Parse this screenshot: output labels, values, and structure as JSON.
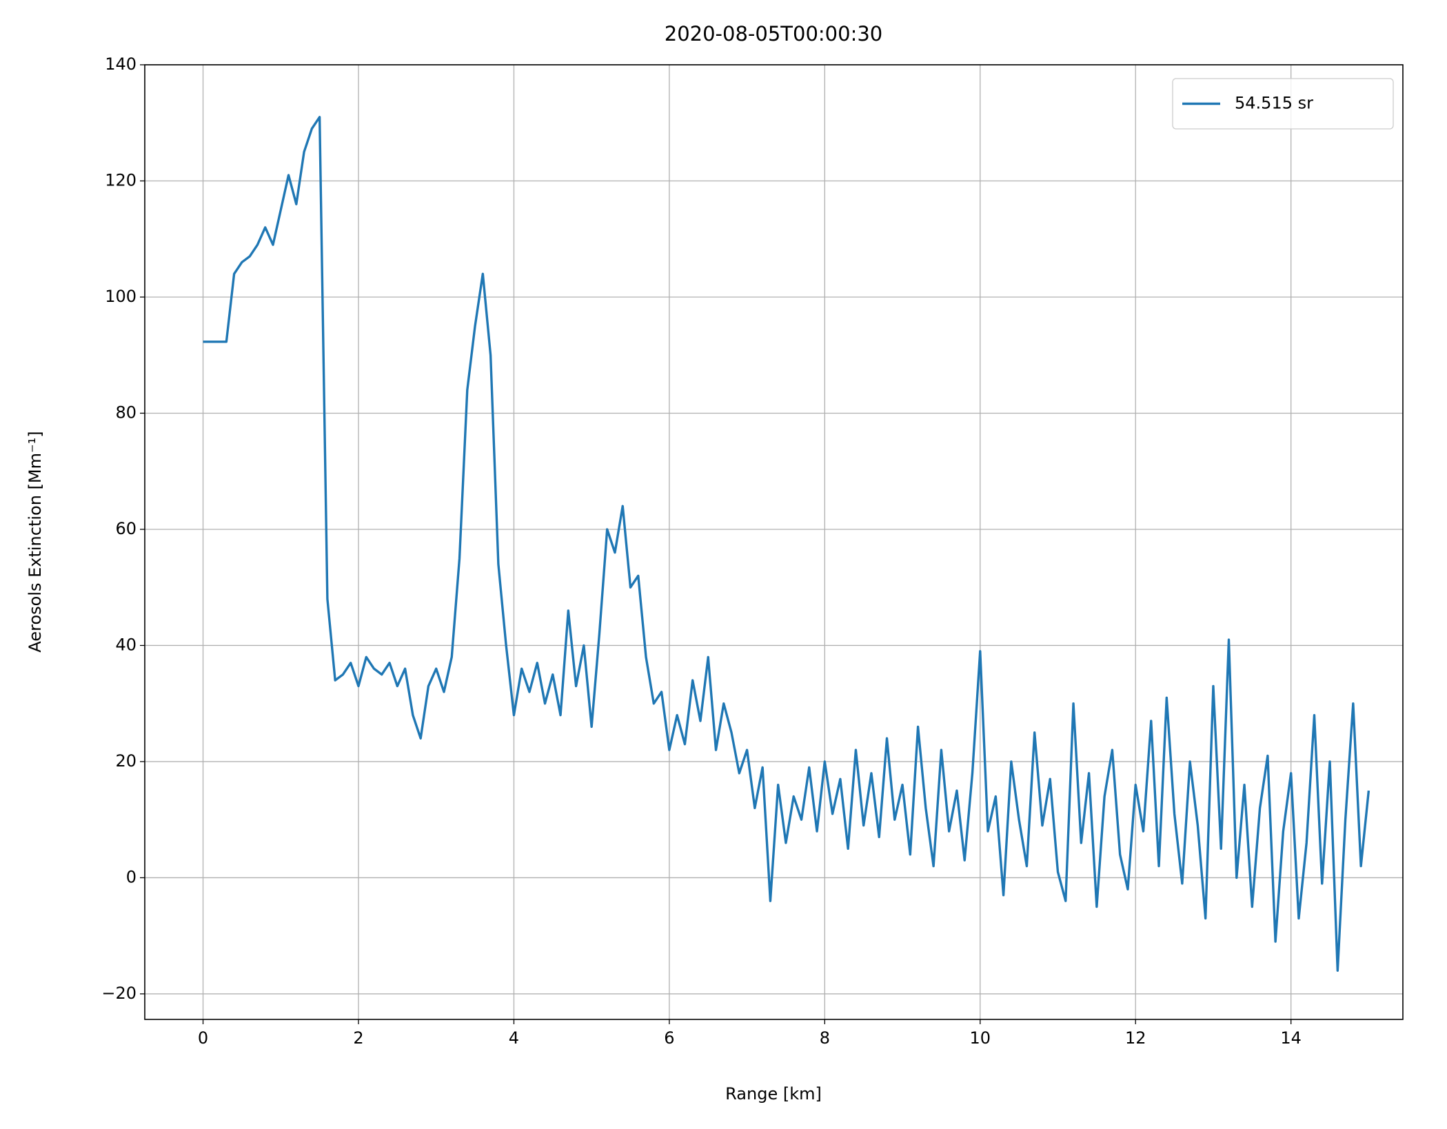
{
  "chart_data": {
    "type": "line",
    "title": "2020-08-05T00:00:30",
    "x_label": "Range [km]",
    "y_label": "Aerosols Extinction [Mm⁻¹]",
    "xlim": [
      -0.75,
      15.44
    ],
    "ylim": [
      -24.4,
      140
    ],
    "xticks": [
      0,
      2,
      4,
      6,
      8,
      10,
      12,
      14
    ],
    "yticks": [
      {
        "value": -20,
        "label": "−20"
      },
      0,
      20,
      40,
      60,
      80,
      100,
      120,
      140
    ],
    "grid": true,
    "legend": "upper right",
    "x": [
      0,
      0.1,
      0.2,
      0.3,
      0.4,
      0.5,
      0.6,
      0.7,
      0.8,
      0.9,
      1.0,
      1.1,
      1.2,
      1.3,
      1.4,
      1.5,
      1.6,
      1.7,
      1.8,
      1.9,
      2.0,
      2.1,
      2.2,
      2.3,
      2.4,
      2.5,
      2.6,
      2.7,
      2.8,
      2.9,
      3.0,
      3.1,
      3.2,
      3.3,
      3.4,
      3.5,
      3.6,
      3.7,
      3.8,
      3.9,
      4.0,
      4.1,
      4.2,
      4.3,
      4.4,
      4.5,
      4.6,
      4.7,
      4.8,
      4.9,
      5.0,
      5.1,
      5.2,
      5.3,
      5.4,
      5.5,
      5.6,
      5.7,
      5.8,
      5.9,
      6.0,
      6.1,
      6.2,
      6.3,
      6.4,
      6.5,
      6.6,
      6.7,
      6.8,
      6.9,
      7.0,
      7.1,
      7.2,
      7.3,
      7.4,
      7.5,
      7.6,
      7.7,
      7.8,
      7.9,
      8.0,
      8.1,
      8.2,
      8.3,
      8.4,
      8.5,
      8.6,
      8.7,
      8.8,
      8.9,
      9.0,
      9.1,
      9.2,
      9.3,
      9.4,
      9.5,
      9.6,
      9.7,
      9.8,
      9.9,
      10.0,
      10.1,
      10.2,
      10.3,
      10.4,
      10.5,
      10.6,
      10.7,
      10.8,
      10.9,
      11.0,
      11.1,
      11.2,
      11.3,
      11.4,
      11.5,
      11.6,
      11.7,
      11.8,
      11.9,
      12.0,
      12.1,
      12.2,
      12.3,
      12.4,
      12.5,
      12.6,
      12.7,
      12.8,
      12.9,
      13.0,
      13.1,
      13.2,
      13.3,
      13.4,
      13.5,
      13.6,
      13.7,
      13.8,
      13.9,
      14.0,
      14.1,
      14.2,
      14.3,
      14.4,
      14.5,
      14.6,
      14.7,
      14.8,
      14.9,
      15.0
    ],
    "series": [
      {
        "name": "54.515 sr",
        "color": "#1f77b4",
        "values": [
          92.3,
          92.3,
          92.3,
          92.3,
          104,
          106,
          107,
          109,
          112,
          109,
          115,
          121,
          116,
          125,
          129,
          131,
          48,
          34,
          35,
          37,
          33,
          38,
          36,
          35,
          37,
          33,
          36,
          28,
          24,
          33,
          36,
          32,
          38,
          55,
          84,
          95,
          104,
          90,
          54,
          40,
          28,
          36,
          32,
          37,
          30,
          35,
          28,
          46,
          33,
          40,
          26,
          42,
          60,
          56,
          64,
          50,
          52,
          38,
          30,
          32,
          22,
          28,
          23,
          34,
          27,
          38,
          22,
          30,
          25,
          18,
          22,
          12,
          19,
          -4,
          16,
          6,
          14,
          10,
          19,
          8,
          20,
          11,
          17,
          5,
          22,
          9,
          18,
          7,
          24,
          10,
          16,
          4,
          26,
          12,
          2,
          22,
          8,
          15,
          3,
          18,
          39,
          8,
          14,
          -3,
          20,
          10,
          2,
          25,
          9,
          17,
          1,
          -4,
          30,
          6,
          18,
          -5,
          14,
          22,
          4,
          -2,
          16,
          8,
          27,
          2,
          31,
          11,
          -1,
          20,
          9,
          -7,
          33,
          5,
          41,
          0,
          16,
          -5,
          12,
          21,
          -11,
          8,
          18,
          -7,
          6,
          28,
          -1,
          20,
          -16,
          10,
          30,
          2,
          15
        ]
      }
    ]
  }
}
